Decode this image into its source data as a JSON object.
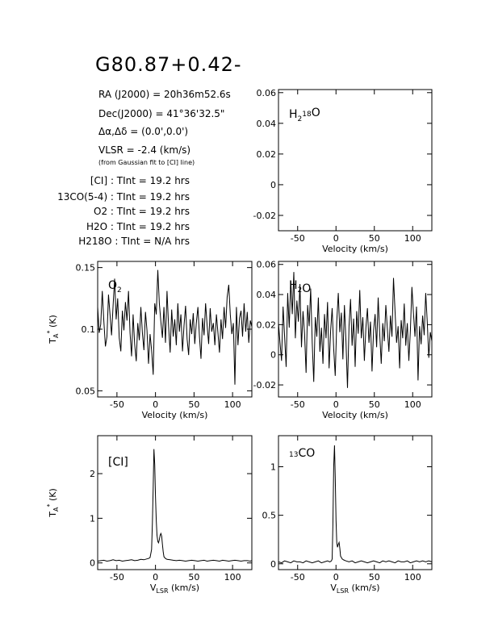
{
  "header": {
    "source_name": "G80.87+0.42-",
    "ra_label": "RA (J2000) = ",
    "ra_value": "20h36m52.6s",
    "dec_label": "Dec(J2000) = ",
    "dec_value": "41°36'32.5\"",
    "offset_label": "Δα,Δδ = ",
    "offset_value": "(0.0',0.0')",
    "vlsr_label": "VLSR = ",
    "vlsr_value": "-2.4 (km/s)",
    "vlsr_note": "(from Gaussian fit to [CI] line)"
  },
  "integration_times": [
    {
      "line": "[CI]",
      "value": "19.2 hrs"
    },
    {
      "line": "13CO(5-4)",
      "value": "19.2 hrs"
    },
    {
      "line": "O2",
      "value": "19.2 hrs"
    },
    {
      "line": "H2O",
      "value": "19.2 hrs"
    },
    {
      "line": "H218O",
      "value": "N/A hrs"
    }
  ],
  "tint_label": "TInt =",
  "axis_labels": {
    "velocity": "Velocity (km/s)",
    "vlsr": "VLSR (km/s)",
    "ta": "TA* (K)"
  },
  "chart_data": [
    {
      "id": "h218o",
      "type": "line",
      "label": "H218O",
      "xlim": [
        -75,
        125
      ],
      "ylim": [
        -0.03,
        0.062
      ],
      "xticks": [
        -50,
        0,
        50,
        100
      ],
      "yticks": [
        -0.02,
        0,
        0.02,
        0.04,
        0.06
      ],
      "ytick_labels": [
        "-0.02",
        "0",
        "0.02",
        "0.04",
        "0.06"
      ],
      "xlabel": "Velocity (km/s)",
      "ylabel": "",
      "x": [],
      "y": []
    },
    {
      "id": "o2",
      "type": "line",
      "label": "O2",
      "xlim": [
        -75,
        125
      ],
      "ylim": [
        0.045,
        0.155
      ],
      "xticks": [
        -50,
        0,
        50,
        100
      ],
      "yticks": [
        0.05,
        0.1,
        0.15
      ],
      "ytick_labels": [
        "0.05",
        "0.1",
        "0.15"
      ],
      "xlabel": "Velocity (km/s)",
      "ylabel": "TA* (K)",
      "x": [
        -75,
        -73,
        -71,
        -69,
        -67,
        -65,
        -63,
        -61,
        -59,
        -57,
        -55,
        -53,
        -51,
        -49,
        -47,
        -45,
        -43,
        -41,
        -39,
        -37,
        -35,
        -33,
        -31,
        -29,
        -27,
        -25,
        -23,
        -21,
        -19,
        -17,
        -15,
        -13,
        -11,
        -9,
        -7,
        -5,
        -3,
        -1,
        1,
        3,
        5,
        7,
        9,
        11,
        13,
        15,
        17,
        19,
        21,
        23,
        25,
        27,
        29,
        31,
        33,
        35,
        37,
        39,
        41,
        43,
        45,
        47,
        49,
        51,
        53,
        55,
        57,
        59,
        61,
        63,
        65,
        67,
        69,
        71,
        73,
        75,
        77,
        79,
        81,
        83,
        85,
        87,
        89,
        91,
        93,
        95,
        97,
        99,
        101,
        103,
        105,
        107,
        109,
        111,
        113,
        115,
        117,
        119,
        121,
        123,
        125
      ],
      "y": [
        0.118,
        0.097,
        0.104,
        0.131,
        0.107,
        0.086,
        0.094,
        0.128,
        0.112,
        0.095,
        0.119,
        0.141,
        0.108,
        0.125,
        0.093,
        0.082,
        0.115,
        0.099,
        0.122,
        0.107,
        0.131,
        0.097,
        0.078,
        0.112,
        0.088,
        0.074,
        0.105,
        0.091,
        0.118,
        0.097,
        0.083,
        0.114,
        0.099,
        0.072,
        0.096,
        0.083,
        0.063,
        0.121,
        0.112,
        0.148,
        0.121,
        0.106,
        0.093,
        0.118,
        0.089,
        0.131,
        0.102,
        0.081,
        0.116,
        0.094,
        0.108,
        0.087,
        0.121,
        0.098,
        0.112,
        0.082,
        0.103,
        0.119,
        0.092,
        0.079,
        0.108,
        0.096,
        0.113,
        0.088,
        0.105,
        0.118,
        0.094,
        0.076,
        0.109,
        0.095,
        0.121,
        0.103,
        0.088,
        0.117,
        0.098,
        0.105,
        0.087,
        0.112,
        0.097,
        0.081,
        0.108,
        0.092,
        0.118,
        0.101,
        0.126,
        0.136,
        0.112,
        0.096,
        0.105,
        0.055,
        0.118,
        0.087,
        0.109,
        0.115,
        0.094,
        0.121,
        0.098,
        0.114,
        0.089,
        0.107,
        0.102
      ]
    },
    {
      "id": "h2o",
      "type": "line",
      "label": "H2O",
      "xlim": [
        -75,
        125
      ],
      "ylim": [
        -0.028,
        0.062
      ],
      "xticks": [
        -50,
        0,
        50,
        100
      ],
      "yticks": [
        -0.02,
        0,
        0.02,
        0.04,
        0.06
      ],
      "ytick_labels": [
        "-0.02",
        "0",
        "0.02",
        "0.04",
        "0.06"
      ],
      "xlabel": "Velocity (km/s)",
      "ylabel": "",
      "x": [
        -75,
        -73,
        -71,
        -69,
        -67,
        -65,
        -63,
        -61,
        -59,
        -57,
        -55,
        -53,
        -51,
        -49,
        -47,
        -45,
        -43,
        -41,
        -39,
        -37,
        -35,
        -33,
        -31,
        -29,
        -27,
        -25,
        -23,
        -21,
        -19,
        -17,
        -15,
        -13,
        -11,
        -9,
        -7,
        -5,
        -3,
        -1,
        1,
        3,
        5,
        7,
        9,
        11,
        13,
        15,
        17,
        19,
        21,
        23,
        25,
        27,
        29,
        31,
        33,
        35,
        37,
        39,
        41,
        43,
        45,
        47,
        49,
        51,
        53,
        55,
        57,
        59,
        61,
        63,
        65,
        67,
        69,
        71,
        73,
        75,
        77,
        79,
        81,
        83,
        85,
        87,
        89,
        91,
        93,
        95,
        97,
        99,
        101,
        103,
        105,
        107,
        109,
        111,
        113,
        115,
        117,
        119,
        121,
        123,
        125
      ],
      "y": [
        0.021,
        0.008,
        -0.004,
        0.032,
        0.012,
        -0.008,
        0.041,
        0.018,
        0.049,
        0.027,
        0.055,
        0.011,
        0.036,
        0.022,
        0.047,
        0.005,
        0.029,
        0.014,
        -0.012,
        0.033,
        0.019,
        0.044,
        0.008,
        -0.018,
        0.025,
        0.012,
        0.038,
        0.002,
        0.018,
        -0.006,
        0.027,
        0.011,
        0.035,
        -0.009,
        0.016,
        0.031,
        0.004,
        -0.014,
        0.022,
        0.041,
        0.015,
        0.028,
        -0.003,
        0.033,
        0.009,
        -0.022,
        0.019,
        0.037,
        0.006,
        0.024,
        -0.008,
        0.029,
        0.014,
        0.043,
        0.011,
        0.025,
        -0.004,
        0.018,
        0.031,
        0.008,
        0.022,
        -0.011,
        0.016,
        0.027,
        0.005,
        0.038,
        0.014,
        -0.006,
        0.021,
        0.009,
        0.033,
        0.017,
        0.002,
        0.026,
        0.012,
        0.051,
        0.029,
        0.008,
        0.019,
        -0.009,
        0.023,
        0.011,
        0.034,
        0.006,
        0.021,
        -0.004,
        0.016,
        0.045,
        0.028,
        0.012,
        0.032,
        -0.017,
        0.019,
        0.007,
        0.026,
        0.013,
        0.041,
        0.022,
        -0.002,
        0.015,
        0.009
      ]
    },
    {
      "id": "ci",
      "type": "line",
      "label": "[CI]",
      "xlim": [
        -75,
        125
      ],
      "ylim": [
        -0.15,
        2.85
      ],
      "xticks": [
        -50,
        0,
        50,
        100
      ],
      "yticks": [
        0,
        1,
        2
      ],
      "ytick_labels": [
        "0",
        "1",
        "2"
      ],
      "xlabel": "VLSR (km/s)",
      "ylabel": "TA* (K)",
      "x": [
        -75,
        -71,
        -67,
        -63,
        -59,
        -55,
        -51,
        -47,
        -43,
        -39,
        -35,
        -31,
        -27,
        -23,
        -19,
        -15,
        -11,
        -9,
        -7,
        -5,
        -4,
        -3,
        -2,
        -1,
        0,
        1,
        2,
        3,
        4,
        5,
        6,
        7,
        8,
        9,
        10,
        11,
        13,
        15,
        19,
        23,
        27,
        31,
        35,
        39,
        43,
        47,
        51,
        55,
        59,
        63,
        67,
        71,
        75,
        79,
        83,
        87,
        91,
        95,
        99,
        103,
        107,
        111,
        115,
        119,
        123,
        125
      ],
      "y": [
        0.04,
        0.05,
        0.06,
        0.04,
        0.05,
        0.07,
        0.05,
        0.06,
        0.04,
        0.05,
        0.06,
        0.07,
        0.05,
        0.06,
        0.08,
        0.07,
        0.09,
        0.1,
        0.12,
        0.3,
        0.9,
        1.7,
        2.55,
        2.2,
        1.5,
        0.95,
        0.62,
        0.48,
        0.45,
        0.52,
        0.62,
        0.66,
        0.6,
        0.42,
        0.25,
        0.14,
        0.1,
        0.08,
        0.07,
        0.06,
        0.05,
        0.06,
        0.05,
        0.04,
        0.05,
        0.06,
        0.05,
        0.04,
        0.05,
        0.06,
        0.04,
        0.05,
        0.06,
        0.05,
        0.04,
        0.06,
        0.05,
        0.04,
        0.05,
        0.06,
        0.05,
        0.04,
        0.05,
        0.05,
        0.04,
        0.05
      ]
    },
    {
      "id": "13co",
      "type": "line",
      "label": "13CO",
      "xlim": [
        -75,
        125
      ],
      "ylim": [
        -0.06,
        1.32
      ],
      "xticks": [
        -50,
        0,
        50,
        100
      ],
      "yticks": [
        0,
        0.5,
        1
      ],
      "ytick_labels": [
        "0",
        "0.5",
        "1"
      ],
      "xlabel": "VLSR (km/s)",
      "ylabel": "",
      "x": [
        -75,
        -71,
        -67,
        -63,
        -59,
        -55,
        -51,
        -47,
        -43,
        -39,
        -35,
        -31,
        -27,
        -23,
        -19,
        -15,
        -11,
        -8,
        -6,
        -5,
        -4,
        -3,
        -2,
        -1,
        0,
        1,
        2,
        3,
        4,
        5,
        6,
        8,
        10,
        13,
        17,
        21,
        25,
        29,
        33,
        37,
        41,
        45,
        49,
        53,
        57,
        61,
        65,
        69,
        73,
        77,
        81,
        85,
        89,
        93,
        97,
        101,
        105,
        109,
        113,
        117,
        121,
        125
      ],
      "y": [
        0.02,
        0.01,
        0.03,
        0.02,
        0.01,
        0.03,
        0.02,
        0.02,
        0.01,
        0.03,
        0.02,
        0.01,
        0.02,
        0.03,
        0.01,
        0.02,
        0.03,
        0.02,
        0.03,
        0.05,
        0.4,
        1.0,
        1.22,
        0.9,
        0.45,
        0.22,
        0.17,
        0.2,
        0.22,
        0.16,
        0.08,
        0.05,
        0.04,
        0.03,
        0.02,
        0.03,
        0.01,
        0.02,
        0.03,
        0.02,
        0.01,
        0.02,
        0.03,
        0.02,
        0.01,
        0.03,
        0.02,
        0.03,
        0.02,
        0.01,
        0.03,
        0.02,
        0.02,
        0.03,
        0.01,
        0.02,
        0.03,
        0.02,
        0.03,
        0.02,
        0.03,
        0.02
      ]
    }
  ]
}
